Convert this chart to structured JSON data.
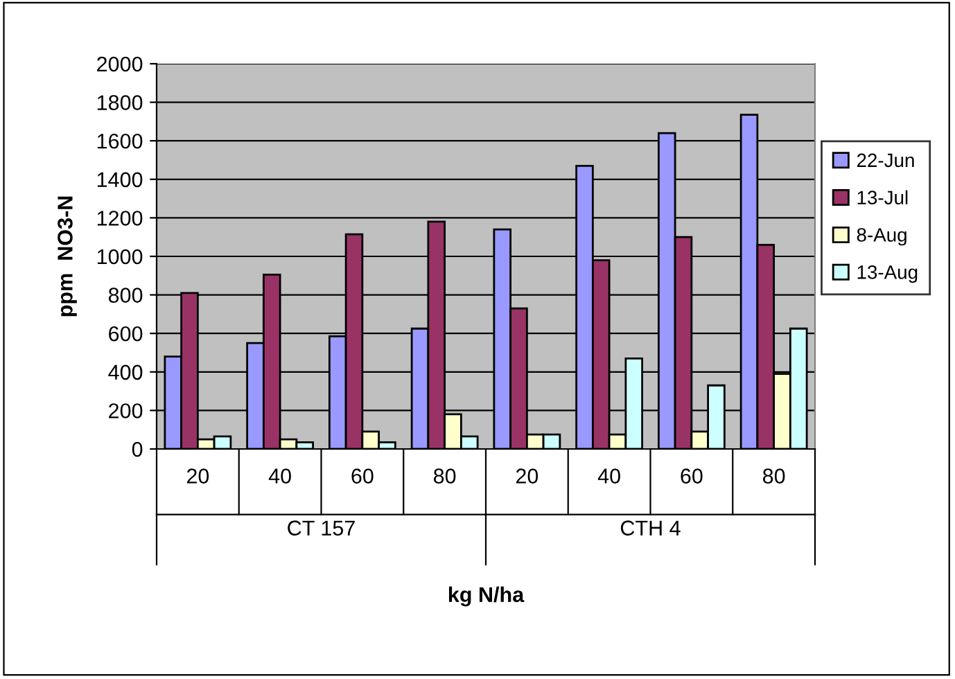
{
  "chart_data": {
    "type": "bar",
    "xlabel": "kg N/ha",
    "ylabel": "ppm  NO3-N",
    "categories": [
      "20",
      "40",
      "60",
      "80",
      "20",
      "40",
      "60",
      "80"
    ],
    "annotations": [
      "CT 157",
      "CTH 4"
    ],
    "series": [
      {
        "name": "22-Jun",
        "color": "#9999ff",
        "values": [
          480,
          550,
          585,
          625,
          1140,
          1470,
          1640,
          1735
        ]
      },
      {
        "name": "13-Jul",
        "color": "#993366",
        "values": [
          810,
          905,
          1115,
          1180,
          730,
          980,
          1100,
          1060
        ]
      },
      {
        "name": "8-Aug",
        "color": "#ffffcc",
        "values": [
          50,
          50,
          90,
          180,
          75,
          75,
          90,
          390
        ]
      },
      {
        "name": "13-Aug",
        "color": "#ccffff",
        "values": [
          65,
          35,
          35,
          65,
          75,
          470,
          330,
          625
        ]
      }
    ],
    "ylim": [
      0,
      2000
    ],
    "yticks": [
      0,
      200,
      400,
      600,
      800,
      1000,
      1200,
      1400,
      1600,
      1800,
      2000
    ],
    "grid": "y",
    "legend": "right"
  }
}
